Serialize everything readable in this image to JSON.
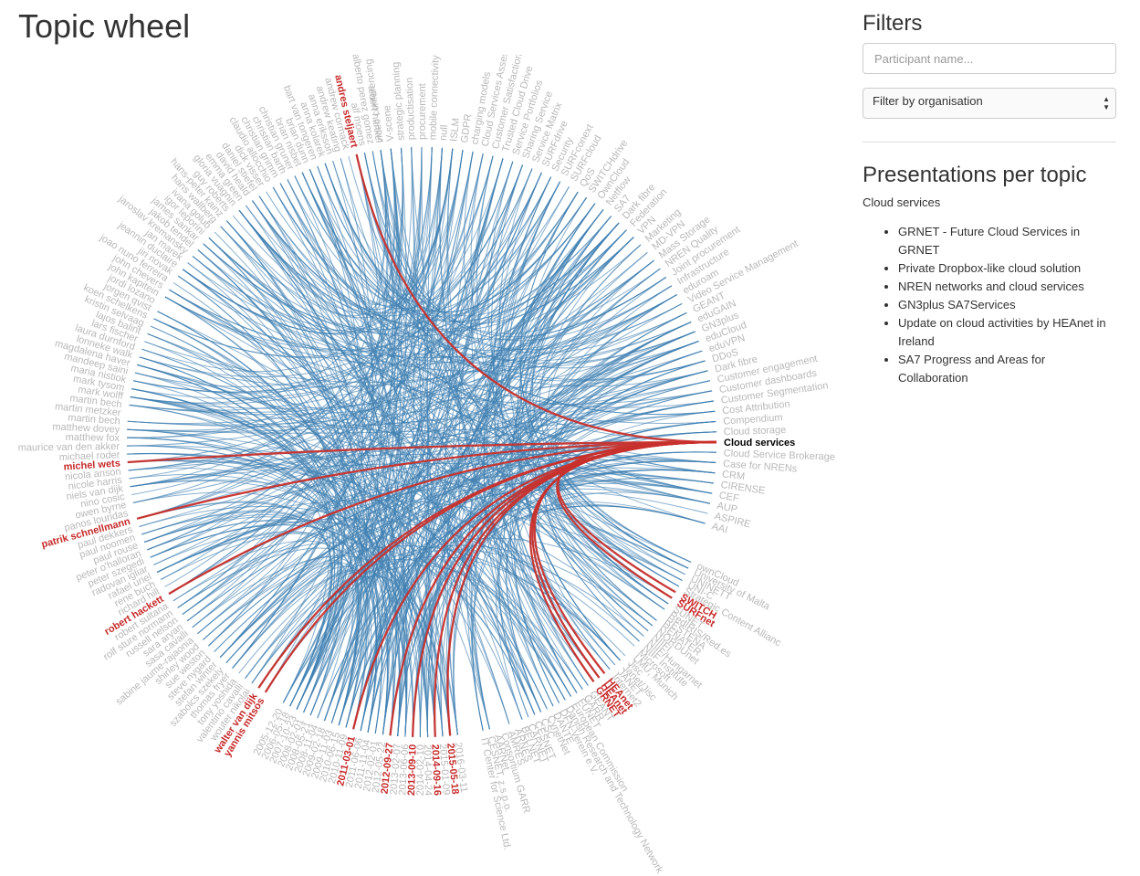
{
  "page": {
    "title": "Topic wheel"
  },
  "filters": {
    "heading": "Filters",
    "participant_placeholder": "Participant name...",
    "organisation_select": "Filter by organisation"
  },
  "presentations": {
    "heading": "Presentations per topic",
    "topic": "Cloud services",
    "items": [
      "GRNET - Future Cloud Services in GRNET",
      "Private Dropbox-like cloud solution",
      "NREN networks and cloud services",
      "GN3plus SA7Services",
      "Update on cloud activities by HEAnet in Ireland",
      "SA7 Progress and Areas for Collaboration"
    ]
  },
  "colors": {
    "link": "#3f7fb2",
    "highlight": "#c8302c",
    "label": "#b8b8b8",
    "focus": "#000000"
  },
  "wheel": {
    "focus_topic": "Cloud services",
    "topics": [
      "video conferencing",
      "V-scene",
      "strategic planning",
      "productisation",
      "procurement",
      "mobile connectivity",
      "null",
      "ISLM",
      "GDPR",
      "charging models",
      "Cloud Services Assessme.",
      "Customer Satisfaction",
      "Trusted Cloud Drive",
      "Service Portfolios",
      "Sharing Service",
      "Service Matrix",
      "SURFdrive",
      "Security",
      "SURFconext",
      "SURFcloud",
      "QoS",
      "SWITCHdrive",
      "OwnCloud",
      "Netflow",
      "SA7",
      "Dark fibre",
      "Federation",
      "VPN",
      "Marketing",
      "MD-VPN",
      "Mass Storage",
      "NREN Quality",
      "Joint procurement",
      "Infrastructure",
      "eduroam",
      "Video Service Management",
      "GEANT",
      "eduGAIN",
      "GN3plus",
      "eduCloud",
      "eduVPN",
      "DDoS",
      "Dark fibre",
      "Customer engagement",
      "Customer dashboards",
      "Customer Segmentation",
      "Cost Attribution",
      "Compendium",
      "Cloud storage",
      "Cloud services",
      "Cloud Service Brokerage",
      "Case for NRENs",
      "CRM",
      "CIRENSE",
      "CEF",
      "AUP",
      "ASPIRE",
      "AAI"
    ],
    "organisations": [
      "ownCloud",
      "University of Malta",
      "UNINETT",
      "UNI-C",
      "Strategic Content Allianc",
      "SWITCH",
      "SURFnet",
      "SUNET",
      "RedIRIS/Red.es",
      "RESTENA",
      "RENATER",
      "NORDUnet",
      "NIIFI",
      "NIIF/Hungarnet",
      "NIIF Institute",
      "Microsoft",
      "LMU, Munich",
      "Jisc",
      "Janet/Jisc",
      "JANET",
      "Internet2",
      "HEAnet",
      "HEAnet",
      "GRNET",
      "GEANT",
      "GARR",
      "FUNET",
      "European Commission",
      "Danish Research and Technology Network",
      "DFN-Verein e.V.",
      "DANTE",
      "CynetNet",
      "CSC",
      "CESNET",
      "CARNET",
      "BELNET",
      "ARNES",
      "AMRES",
      "Consortium GARR",
      "AARNet",
      "CESNET, z.s.p.o.",
      "IT Center for Science Ltd."
    ],
    "dates": [
      "2016-03-11",
      "2015-05-18",
      "2015-01-09",
      "2014-09-16",
      "2014-04-24",
      "2014-02-10",
      "2013-09-10",
      "2013-06-06",
      "2013-02-07",
      "2012-09-27",
      "2012-05-22",
      "2012-02-01",
      "2011-11-04",
      "2011-06-06",
      "2011-03-01",
      "2010-11-09",
      "2010-06-15",
      "2009-11-03",
      "2009-02-18",
      "2008-11-04",
      "2008-05-21",
      "2008-02-01",
      "2007-10-23",
      "2006-05-18",
      "2005-12-20"
    ],
    "participants": [
      "yannis mitsos",
      "walter van dijk",
      "wouter nikolai",
      "valentino cavalli",
      "tony yoshida",
      "thomas fryer",
      "szabolcs szekely",
      "stefan winter",
      "steve nygard",
      "sue weston",
      "shirley wood",
      "sabine jaume-rajaonia",
      "sasa cavalli",
      "sara aryan",
      "russell nelson",
      "rolf sture normann",
      "robert sultana",
      "robert hackett",
      "richard hill",
      "rene buch",
      "rafael uriel",
      "radovan igliar",
      "peter szegedi",
      "peter o'halloran",
      "paul rouse",
      "paul noomen",
      "paul dekkers",
      "patrik schnellmann",
      "panos louridas",
      "owen byrne",
      "nino cosic",
      "niels van dijk",
      "nicole harris",
      "nicola anson",
      "michel wets",
      "michael roder",
      "maurice van den akker",
      "matthew fox",
      "matthew dovey",
      "martin bech",
      "martin metzker",
      "martin bech",
      "mark wolff",
      "mark tysom",
      "maria nistiok",
      "mandeep saini",
      "magdalena haver",
      "lonneke walk",
      "laura durnford",
      "lars fischer",
      "lajos balint",
      "kristin selvaag",
      "koen schelkens",
      "jorgen qvist",
      "jordi lozano",
      "john kapitein",
      "john chevers",
      "joao nuno ferreira",
      "jiri novak",
      "jeannin duclaire",
      "jan marek",
      "jaroslav kremansky",
      "jakob tendel",
      "james sankar",
      "igor leporini",
      "ivana golub",
      "hans wallberg",
      "hans-peter kainz",
      "guy roberts",
      "gloria vuagnin",
      "emma green",
      "david heald",
      "daniel stiefel",
      "dick visser",
      "claudio allocchio",
      "christian grimm",
      "christian barth",
      "christian gruner",
      "brian nisbet",
      "brian dunn",
      "bart van tongeren",
      "anna kolarek",
      "anna eriksson",
      "andrew keating",
      "andrew cormack",
      "andres steljaert",
      "alf moens",
      "alberto perez gomez",
      "albert hankel"
    ],
    "highlighted": [
      "andres steljaert",
      "michel wets",
      "patrik schnellmann",
      "robert hackett",
      "walter van dijk",
      "yannis mitsos",
      "2011-03-01",
      "2012-09-27",
      "2013-09-10",
      "2014-09-16",
      "2015-05-18",
      "SWITCH",
      "SURFnet",
      "HEAnet",
      "GRNET"
    ]
  }
}
